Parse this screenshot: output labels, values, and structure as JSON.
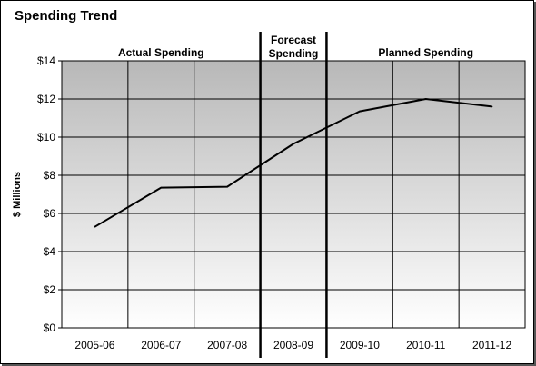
{
  "chart_data": {
    "type": "line",
    "title": "Spending Trend",
    "xlabel": "",
    "ylabel": "$ Millions",
    "categories": [
      "2005-06",
      "2006-07",
      "2007-08",
      "2008-09",
      "2009-10",
      "2010-11",
      "2011-12"
    ],
    "series": [
      {
        "values": [
          5.3,
          7.35,
          7.4,
          9.65,
          11.35,
          12.0,
          11.6
        ]
      }
    ],
    "ylim": [
      0,
      14
    ],
    "yticks": [
      0,
      2,
      4,
      6,
      8,
      10,
      12,
      14
    ],
    "ytick_labels": [
      "$0",
      "$2",
      "$4",
      "$6",
      "$8",
      "$10",
      "$12",
      "$14"
    ],
    "grid": true,
    "sections": [
      {
        "lines": [
          "Actual Spending"
        ],
        "categories": [
          "2005-06",
          "2006-07",
          "2007-08"
        ]
      },
      {
        "lines": [
          "Forecast",
          "Spending"
        ],
        "categories": [
          "2008-09"
        ]
      },
      {
        "lines": [
          "Planned Spending"
        ],
        "categories": [
          "2009-10",
          "2010-11",
          "2011-12"
        ]
      }
    ],
    "colors": {
      "line": "#000000",
      "plot_top": "#b8b8b8",
      "plot_bottom": "#ffffff"
    }
  }
}
